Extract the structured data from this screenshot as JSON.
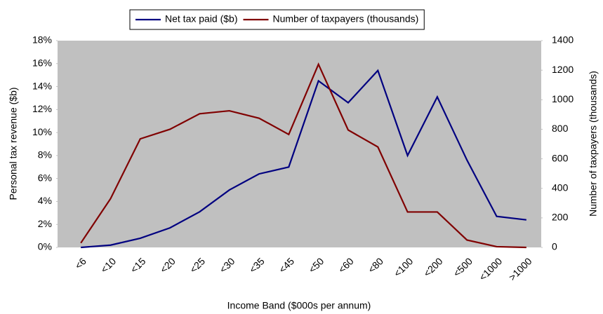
{
  "chart_data": {
    "type": "line",
    "x_label": "Income Band ($000s per annum)",
    "y_label": "Personal tax revenue ($b)",
    "y2_label": "Number of taxpayers (thousands)",
    "categories": [
      "<6",
      "<10",
      "<15",
      "<20",
      "<25",
      "<30",
      "<35",
      "<45",
      "<50",
      "<60",
      "<80",
      "<100",
      "<200",
      "<500",
      "<1000",
      ">1000"
    ],
    "series": [
      {
        "name": "Net tax paid ($b)",
        "color": "#000080",
        "values": [
          0,
          0.2,
          0.8,
          1.7,
          3.1,
          5.0,
          6.4,
          7.0,
          14.5,
          12.6,
          15.4,
          8.0,
          13.1,
          7.6,
          2.7,
          2.4
        ]
      },
      {
        "name": "Number of taxpayers (thousands)",
        "color": "#800000",
        "axis": "y2",
        "values": [
          30,
          330,
          735,
          800,
          905,
          925,
          875,
          765,
          1240,
          795,
          680,
          240,
          240,
          50,
          5,
          0
        ]
      }
    ],
    "ylim": [
      0,
      18
    ],
    "yticks": [
      {
        "value": 0,
        "label": "0%"
      },
      {
        "value": 2,
        "label": "2%"
      },
      {
        "value": 4,
        "label": "4%"
      },
      {
        "value": 6,
        "label": "6%"
      },
      {
        "value": 8,
        "label": "8%"
      },
      {
        "value": 10,
        "label": "10%"
      },
      {
        "value": 12,
        "label": "12%"
      },
      {
        "value": 14,
        "label": "14%"
      },
      {
        "value": 16,
        "label": "16%"
      },
      {
        "value": 18,
        "label": "18%"
      }
    ],
    "y2lim": [
      0,
      1400
    ],
    "y2ticks": [
      0,
      200,
      400,
      600,
      800,
      1000,
      1200,
      1400
    ],
    "grid": false,
    "legend": "top",
    "plot_background": "#c0c0c0"
  }
}
